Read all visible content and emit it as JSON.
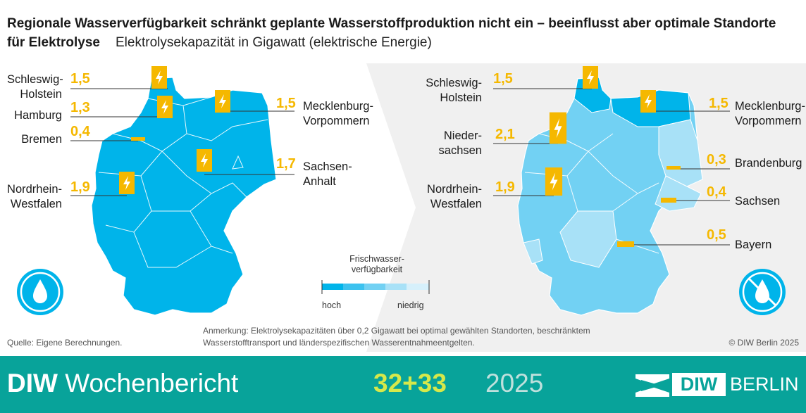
{
  "header": {
    "title_bold": "Regionale Wasserverfügbarkeit schränkt geplante Wasserstoffproduktion nicht ein – beeinflusst aber optimale Standorte für Elektrolyse",
    "subtitle": "Elektrolysekapazität in Gigawatt (elektrische Energie)"
  },
  "left_map": {
    "labels": {
      "sh": "Schleswig-\nHolstein",
      "hh": "Hamburg",
      "hb": "Bremen",
      "nrw": "Nordrhein-\nWestfalen",
      "mv": "Mecklenburg-\nVorpommern",
      "st": "Sachsen-\nAnhalt"
    },
    "values": {
      "sh": "1,5",
      "hh": "1,3",
      "hb": "0,4",
      "nrw": "1,9",
      "mv": "1,5",
      "st": "1,7"
    },
    "icon": "water-drop-icon"
  },
  "right_map": {
    "labels": {
      "sh": "Schleswig-\nHolstein",
      "ni": "Nieder-\nsachsen",
      "nrw": "Nordrhein-\nWestfalen",
      "mv": "Mecklenburg-\nVorpommern",
      "bb": "Brandenburg",
      "sn": "Sachsen",
      "by": "Bayern"
    },
    "values": {
      "sh": "1,5",
      "ni": "2,1",
      "nrw": "1,9",
      "mv": "1,5",
      "bb": "0,3",
      "sn": "0,4",
      "by": "0,5"
    },
    "icon": "no-water-drop-icon"
  },
  "legend": {
    "title": "Frischwasser-\nverfügbarkeit",
    "low": "hoch",
    "high": "niedrig",
    "colors": [
      "#00b4ea",
      "#3cc2ef",
      "#72d1f3",
      "#a8e1f7",
      "#d6f0fb"
    ]
  },
  "colors": {
    "accent_yellow": "#f5b800",
    "map_blue": "#00b4ea",
    "footer_teal": "#08a39a"
  },
  "footnotes": {
    "source": "Quelle: Eigene Berechnungen.",
    "note": "Anmerkung: Elektrolysekapazitäten über 0,2 Gigawatt bei optimal gewählten Standorten, beschränktem Wasserstofftransport und länderspezifischen Wasserentnahmeentgelten.",
    "copyright": "© DIW Berlin 2025"
  },
  "footer": {
    "brand_bold": "DIW",
    "brand_rest": " Wochenbericht",
    "issue": "32+33",
    "year": " 2025",
    "logo_diw": "DIW",
    "logo_berlin": "BERLIN"
  }
}
